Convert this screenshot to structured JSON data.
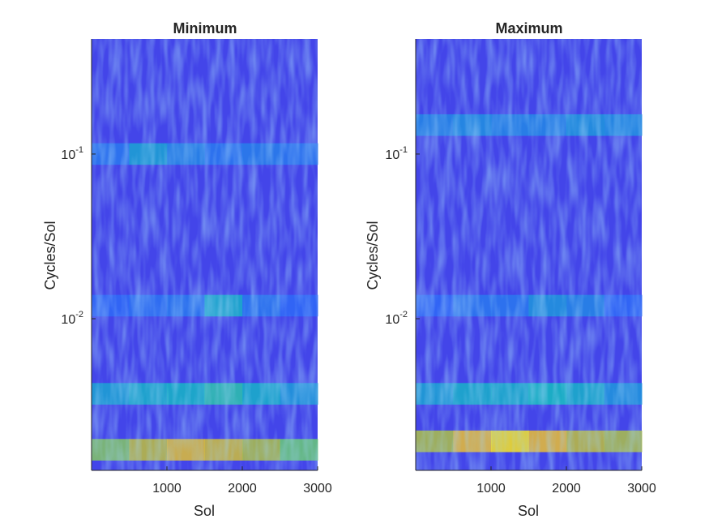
{
  "chart_data": [
    {
      "type": "heatmap",
      "title": "Minimum",
      "xlabel": "Sol",
      "ylabel": "Cycles/Sol",
      "xlim": [
        0,
        3000
      ],
      "ylim": [
        0.0012,
        0.5
      ],
      "yscale": "log",
      "xticks": [
        {
          "value": 1000,
          "label": "1000"
        },
        {
          "value": 2000,
          "label": "2000"
        },
        {
          "value": 3000,
          "label": "3000"
        }
      ],
      "yticks": [
        {
          "value": 0.1,
          "base": "10",
          "exp": "-1"
        },
        {
          "value": 0.01,
          "base": "10",
          "exp": "-2"
        }
      ],
      "colormap": "parula",
      "bands": [
        {
          "y": 0.0016,
          "level": [
            0.75,
            0.82,
            0.88,
            0.85,
            0.8,
            0.72
          ]
        },
        {
          "y": 0.0035,
          "level": [
            0.45,
            0.5,
            0.52,
            0.6,
            0.5,
            0.42
          ]
        },
        {
          "y": 0.012,
          "level": [
            0.25,
            0.28,
            0.3,
            0.5,
            0.3,
            0.25
          ]
        },
        {
          "y": 0.1,
          "level": [
            0.3,
            0.45,
            0.35,
            0.3,
            0.32,
            0.3
          ]
        }
      ]
    },
    {
      "type": "heatmap",
      "title": "Maximum",
      "xlabel": "Sol",
      "ylabel": "Cycles/Sol",
      "xlim": [
        0,
        3000
      ],
      "ylim": [
        0.0012,
        0.5
      ],
      "yscale": "log",
      "xticks": [
        {
          "value": 1000,
          "label": "1000"
        },
        {
          "value": 2000,
          "label": "2000"
        },
        {
          "value": 3000,
          "label": "3000"
        }
      ],
      "yticks": [
        {
          "value": 0.1,
          "base": "10",
          "exp": "-1"
        },
        {
          "value": 0.01,
          "base": "10",
          "exp": "-2"
        }
      ],
      "colormap": "parula",
      "bands": [
        {
          "y": 0.0018,
          "level": [
            0.8,
            0.9,
            0.97,
            0.9,
            0.82,
            0.8
          ]
        },
        {
          "y": 0.0035,
          "level": [
            0.45,
            0.5,
            0.5,
            0.55,
            0.5,
            0.4
          ]
        },
        {
          "y": 0.012,
          "level": [
            0.25,
            0.3,
            0.3,
            0.4,
            0.35,
            0.25
          ]
        },
        {
          "y": 0.15,
          "level": [
            0.35,
            0.38,
            0.35,
            0.35,
            0.4,
            0.38
          ]
        }
      ]
    }
  ]
}
